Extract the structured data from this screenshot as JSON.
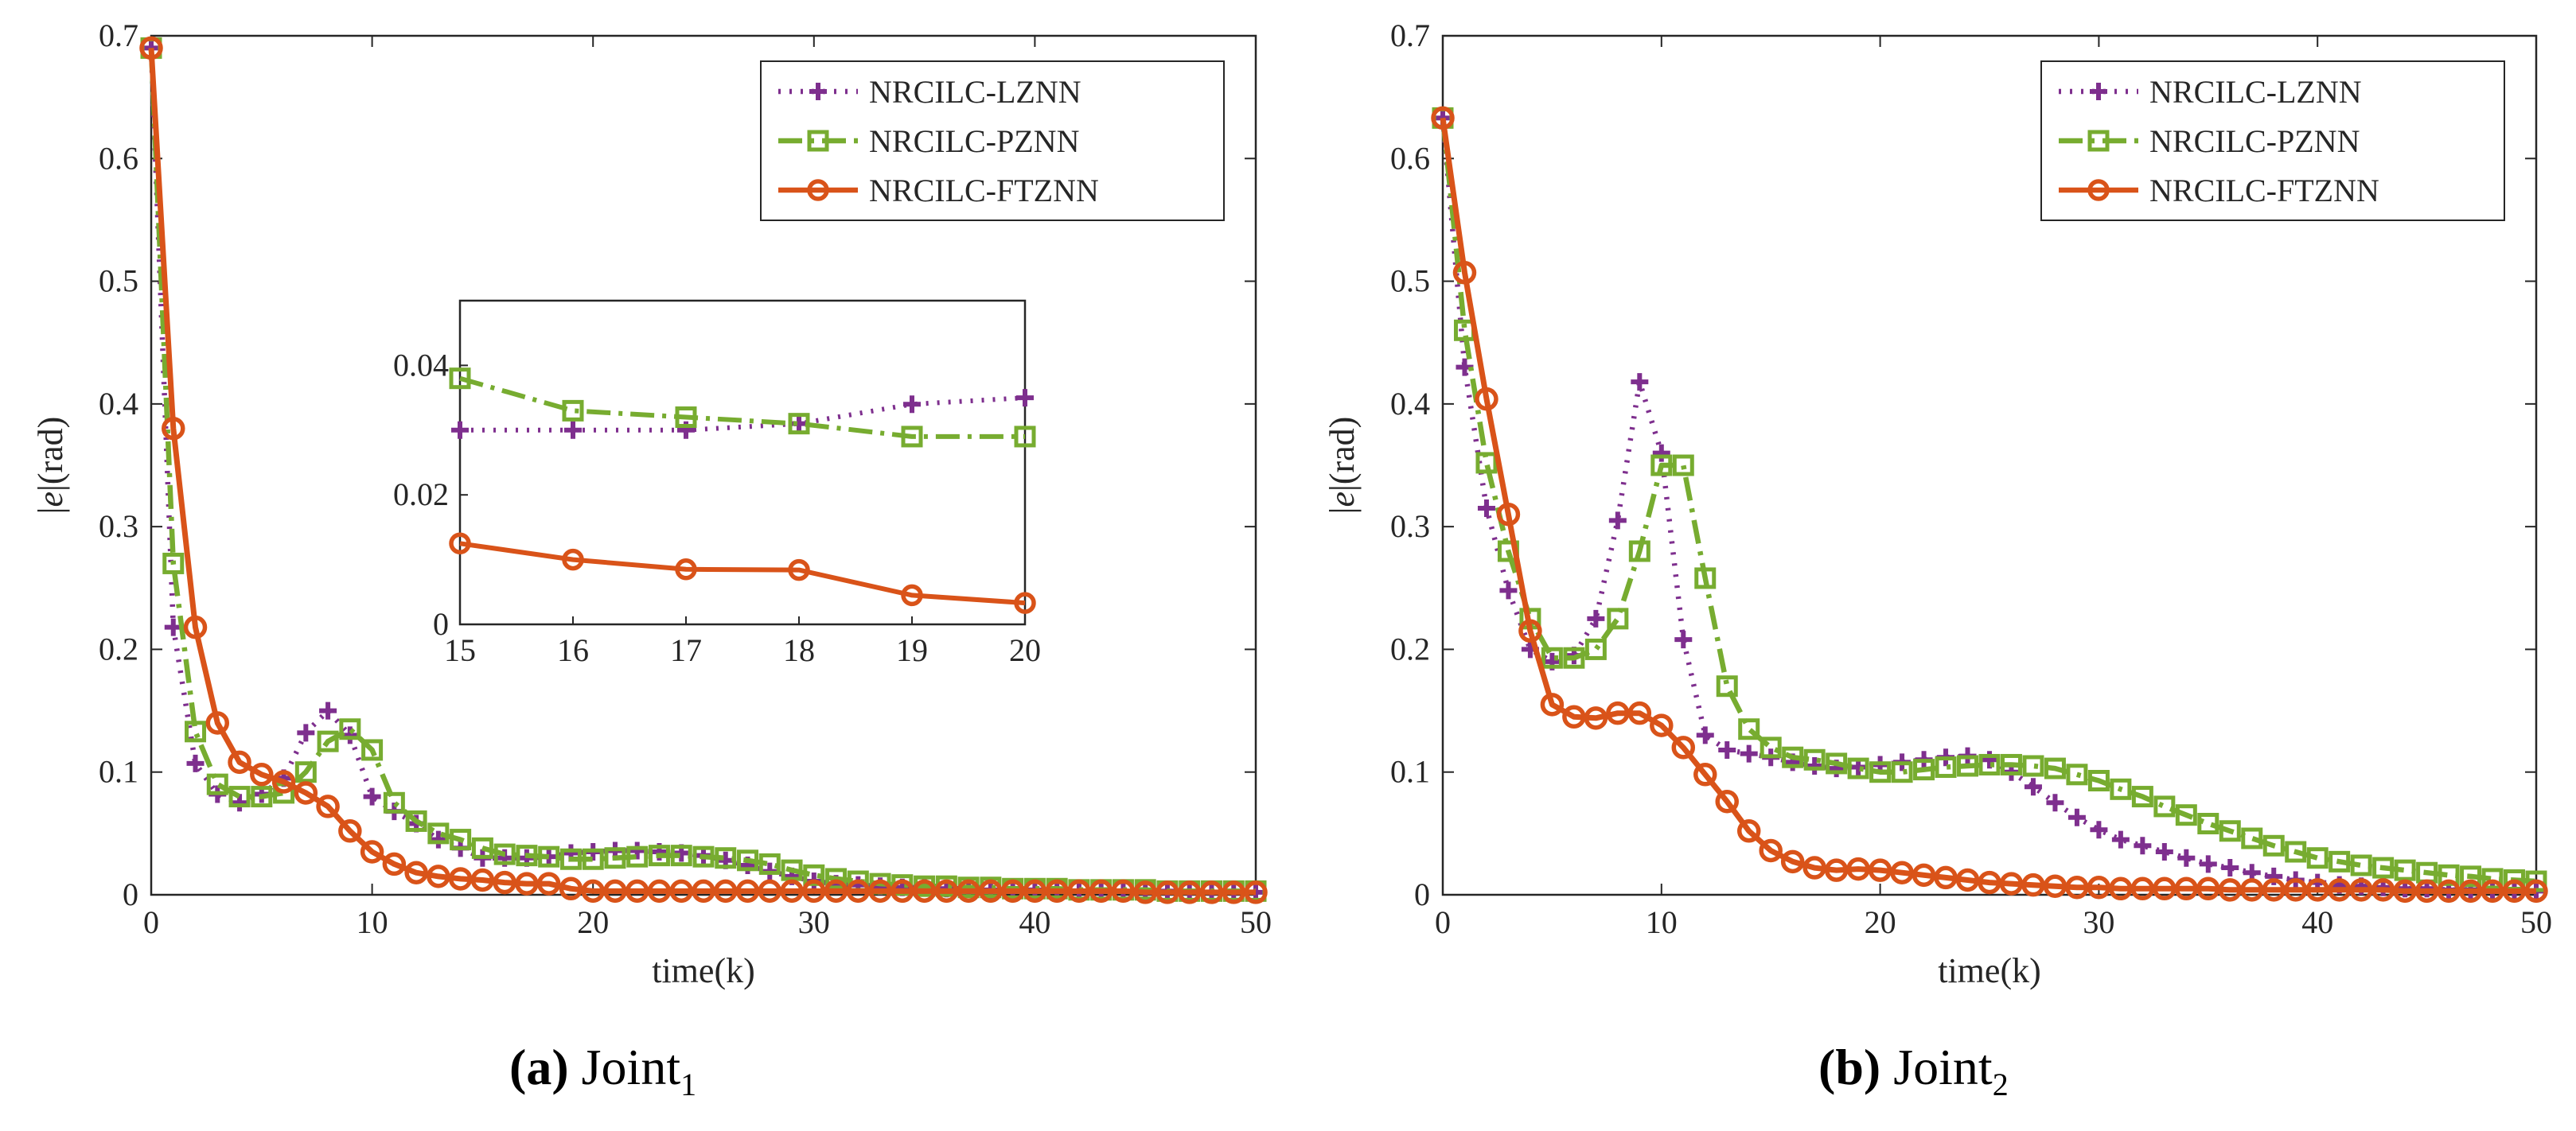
{
  "colors": {
    "lznn": "#7E2F8E",
    "pznn": "#77AC30",
    "ftznn": "#D95319",
    "axis": "#262626"
  },
  "captions": [
    {
      "letter": "(a)",
      "text": "Joint",
      "sub": "1"
    },
    {
      "letter": "(b)",
      "text": "Joint",
      "sub": "2"
    }
  ],
  "chart_data": [
    {
      "type": "line",
      "title": "",
      "xlabel": "time(k)",
      "ylabel_italic": "e",
      "ylabel_rest": "(rad)",
      "xlim": [
        0,
        50
      ],
      "ylim": [
        0,
        0.7
      ],
      "xticks": [
        "0",
        "10",
        "20",
        "30",
        "40",
        "50"
      ],
      "yticks": [
        "0",
        "0.1",
        "0.2",
        "0.3",
        "0.4",
        "0.5",
        "0.6",
        "0.7"
      ],
      "legend_position": "top-right",
      "x": [
        0,
        1,
        2,
        3,
        4,
        5,
        6,
        7,
        8,
        9,
        10,
        11,
        12,
        13,
        14,
        15,
        16,
        17,
        18,
        19,
        20,
        21,
        22,
        23,
        24,
        25,
        26,
        27,
        28,
        29,
        30,
        31,
        32,
        33,
        34,
        35,
        36,
        37,
        38,
        39,
        40,
        41,
        42,
        43,
        44,
        45,
        46,
        47,
        48,
        49,
        50
      ],
      "series": [
        {
          "name": "NRCILC-LZNN",
          "style": "dotted",
          "marker": "plus",
          "values": [
            0.69,
            0.218,
            0.107,
            0.082,
            0.075,
            0.082,
            0.095,
            0.132,
            0.15,
            0.13,
            0.08,
            0.068,
            0.058,
            0.045,
            0.038,
            0.03,
            0.03,
            0.03,
            0.031,
            0.034,
            0.035,
            0.036,
            0.036,
            0.035,
            0.034,
            0.032,
            0.028,
            0.024,
            0.019,
            0.015,
            0.011,
            0.009,
            0.008,
            0.007,
            0.006,
            0.006,
            0.005,
            0.005,
            0.004,
            0.004,
            0.004,
            0.004,
            0.003,
            0.003,
            0.003,
            0.003,
            0.003,
            0.002,
            0.002,
            0.002,
            0.002
          ]
        },
        {
          "name": "NRCILC-PZNN",
          "style": "dashdot",
          "marker": "square",
          "values": [
            0.69,
            0.27,
            0.133,
            0.09,
            0.08,
            0.08,
            0.083,
            0.1,
            0.125,
            0.135,
            0.118,
            0.075,
            0.06,
            0.05,
            0.045,
            0.038,
            0.033,
            0.032,
            0.031,
            0.029,
            0.029,
            0.03,
            0.031,
            0.032,
            0.032,
            0.031,
            0.03,
            0.028,
            0.025,
            0.02,
            0.016,
            0.013,
            0.011,
            0.009,
            0.008,
            0.007,
            0.007,
            0.006,
            0.006,
            0.005,
            0.005,
            0.005,
            0.004,
            0.004,
            0.004,
            0.004,
            0.003,
            0.003,
            0.003,
            0.003,
            0.003
          ]
        },
        {
          "name": "NRCILC-FTZNN",
          "style": "solid",
          "marker": "circle",
          "values": [
            0.69,
            0.38,
            0.218,
            0.14,
            0.108,
            0.098,
            0.092,
            0.083,
            0.072,
            0.052,
            0.035,
            0.025,
            0.018,
            0.015,
            0.013,
            0.012,
            0.01,
            0.009,
            0.009,
            0.005,
            0.003,
            0.003,
            0.003,
            0.003,
            0.003,
            0.003,
            0.003,
            0.003,
            0.003,
            0.003,
            0.003,
            0.003,
            0.003,
            0.003,
            0.003,
            0.003,
            0.003,
            0.003,
            0.003,
            0.003,
            0.003,
            0.003,
            0.003,
            0.003,
            0.003,
            0.002,
            0.002,
            0.002,
            0.002,
            0.002,
            0.002
          ]
        }
      ],
      "inset": {
        "xlim": [
          15,
          20
        ],
        "ylim": [
          0,
          0.05
        ],
        "xticks": [
          "15",
          "16",
          "17",
          "18",
          "19",
          "20"
        ],
        "yticks": [
          "0",
          "0.02",
          "0.04"
        ],
        "x": [
          15,
          16,
          17,
          18,
          19,
          20
        ],
        "series": [
          {
            "name": "NRCILC-LZNN",
            "values": [
              0.03,
              0.03,
              0.03,
              0.031,
              0.034,
              0.035
            ]
          },
          {
            "name": "NRCILC-PZNN",
            "values": [
              0.038,
              0.033,
              0.032,
              0.031,
              0.029,
              0.029
            ]
          },
          {
            "name": "NRCILC-FTZNN",
            "values": [
              0.0125,
              0.01,
              0.0085,
              0.0084,
              0.0045,
              0.0033
            ]
          }
        ]
      }
    },
    {
      "type": "line",
      "title": "",
      "xlabel": "time(k)",
      "ylabel_italic": "e",
      "ylabel_rest": "(rad)",
      "xlim": [
        0,
        50
      ],
      "ylim": [
        0,
        0.7
      ],
      "xticks": [
        "0",
        "10",
        "20",
        "30",
        "40",
        "50"
      ],
      "yticks": [
        "0",
        "0.1",
        "0.2",
        "0.3",
        "0.4",
        "0.5",
        "0.6",
        "0.7"
      ],
      "legend_position": "top-right",
      "x": [
        0,
        1,
        2,
        3,
        4,
        5,
        6,
        7,
        8,
        9,
        10,
        11,
        12,
        13,
        14,
        15,
        16,
        17,
        18,
        19,
        20,
        21,
        22,
        23,
        24,
        25,
        26,
        27,
        28,
        29,
        30,
        31,
        32,
        33,
        34,
        35,
        36,
        37,
        38,
        39,
        40,
        41,
        42,
        43,
        44,
        45,
        46,
        47,
        48,
        49,
        50
      ],
      "series": [
        {
          "name": "NRCILC-LZNN",
          "style": "dotted",
          "marker": "plus",
          "values": [
            0.633,
            0.43,
            0.315,
            0.248,
            0.2,
            0.19,
            0.195,
            0.225,
            0.305,
            0.418,
            0.36,
            0.208,
            0.13,
            0.118,
            0.115,
            0.112,
            0.108,
            0.105,
            0.103,
            0.104,
            0.106,
            0.108,
            0.11,
            0.112,
            0.113,
            0.11,
            0.1,
            0.088,
            0.075,
            0.063,
            0.053,
            0.045,
            0.04,
            0.035,
            0.03,
            0.025,
            0.022,
            0.018,
            0.015,
            0.012,
            0.01,
            0.008,
            0.007,
            0.006,
            0.005,
            0.005,
            0.004,
            0.004,
            0.004,
            0.003,
            0.003
          ]
        },
        {
          "name": "NRCILC-PZNN",
          "style": "dashdot",
          "marker": "square",
          "values": [
            0.633,
            0.46,
            0.352,
            0.28,
            0.225,
            0.193,
            0.193,
            0.2,
            0.225,
            0.28,
            0.35,
            0.35,
            0.258,
            0.17,
            0.135,
            0.12,
            0.112,
            0.11,
            0.107,
            0.103,
            0.1,
            0.1,
            0.102,
            0.104,
            0.105,
            0.106,
            0.106,
            0.105,
            0.103,
            0.098,
            0.093,
            0.086,
            0.08,
            0.072,
            0.065,
            0.058,
            0.052,
            0.046,
            0.04,
            0.035,
            0.03,
            0.027,
            0.024,
            0.022,
            0.02,
            0.018,
            0.016,
            0.015,
            0.013,
            0.012,
            0.011
          ]
        },
        {
          "name": "NRCILC-FTZNN",
          "style": "solid",
          "marker": "circle",
          "values": [
            0.633,
            0.507,
            0.404,
            0.31,
            0.215,
            0.155,
            0.145,
            0.144,
            0.148,
            0.148,
            0.138,
            0.12,
            0.098,
            0.076,
            0.052,
            0.036,
            0.027,
            0.022,
            0.02,
            0.021,
            0.02,
            0.018,
            0.016,
            0.014,
            0.012,
            0.01,
            0.009,
            0.008,
            0.007,
            0.006,
            0.006,
            0.005,
            0.005,
            0.005,
            0.005,
            0.005,
            0.004,
            0.004,
            0.004,
            0.004,
            0.004,
            0.004,
            0.004,
            0.004,
            0.003,
            0.003,
            0.003,
            0.003,
            0.003,
            0.003,
            0.003
          ]
        }
      ]
    }
  ]
}
